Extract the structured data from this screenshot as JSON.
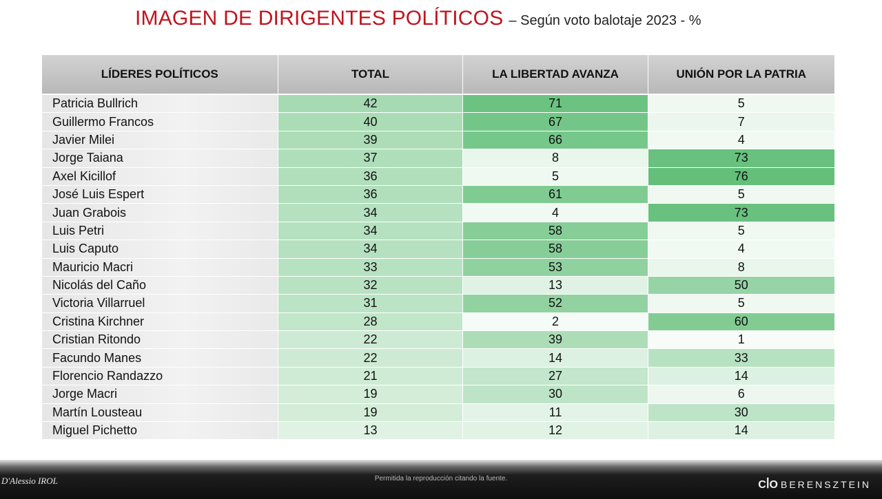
{
  "title": "IMAGEN DE DIRIGENTES POLÍTICOS",
  "subtitle": "– Según voto balotaje 2023 - %",
  "chart_data": {
    "type": "table",
    "columns": [
      "LÍDERES POLÍTICOS",
      "TOTAL",
      "LA LIBERTAD AVANZA",
      "UNIÓN POR LA PATRIA"
    ],
    "rows": [
      [
        "Patricia Bullrich",
        42,
        71,
        5
      ],
      [
        "Guillermo Francos",
        40,
        67,
        7
      ],
      [
        "Javier Milei",
        39,
        66,
        4
      ],
      [
        "Jorge Taiana",
        37,
        8,
        73
      ],
      [
        "Axel Kicillof",
        36,
        5,
        76
      ],
      [
        "José Luis Espert",
        36,
        61,
        5
      ],
      [
        "Juan Grabois",
        34,
        4,
        73
      ],
      [
        "Luis Petri",
        34,
        58,
        5
      ],
      [
        "Luis Caputo",
        34,
        58,
        4
      ],
      [
        "Mauricio Macri",
        33,
        53,
        8
      ],
      [
        "Nicolás del Caño",
        32,
        13,
        50
      ],
      [
        "Victoria Villarruel",
        31,
        52,
        5
      ],
      [
        "Cristina Kirchner",
        28,
        2,
        60
      ],
      [
        "Cristian Ritondo",
        22,
        39,
        1
      ],
      [
        "Facundo Manes",
        22,
        14,
        33
      ],
      [
        "Florencio Randazzo",
        21,
        27,
        14
      ],
      [
        "Jorge Macri",
        19,
        30,
        6
      ],
      [
        "Martín Lousteau",
        19,
        11,
        30
      ],
      [
        "Miguel Pichetto",
        13,
        12,
        14
      ]
    ],
    "heatmap_colors": {
      "low": "#ffffff",
      "high": "#5cbc73"
    }
  },
  "footer": {
    "left_logo": "D'Alessio IROL",
    "note": "Permitida la reproducción citando la fuente.",
    "right_logo_mark": "CꟾO",
    "right_logo_text": "BERENSZTEIN"
  }
}
